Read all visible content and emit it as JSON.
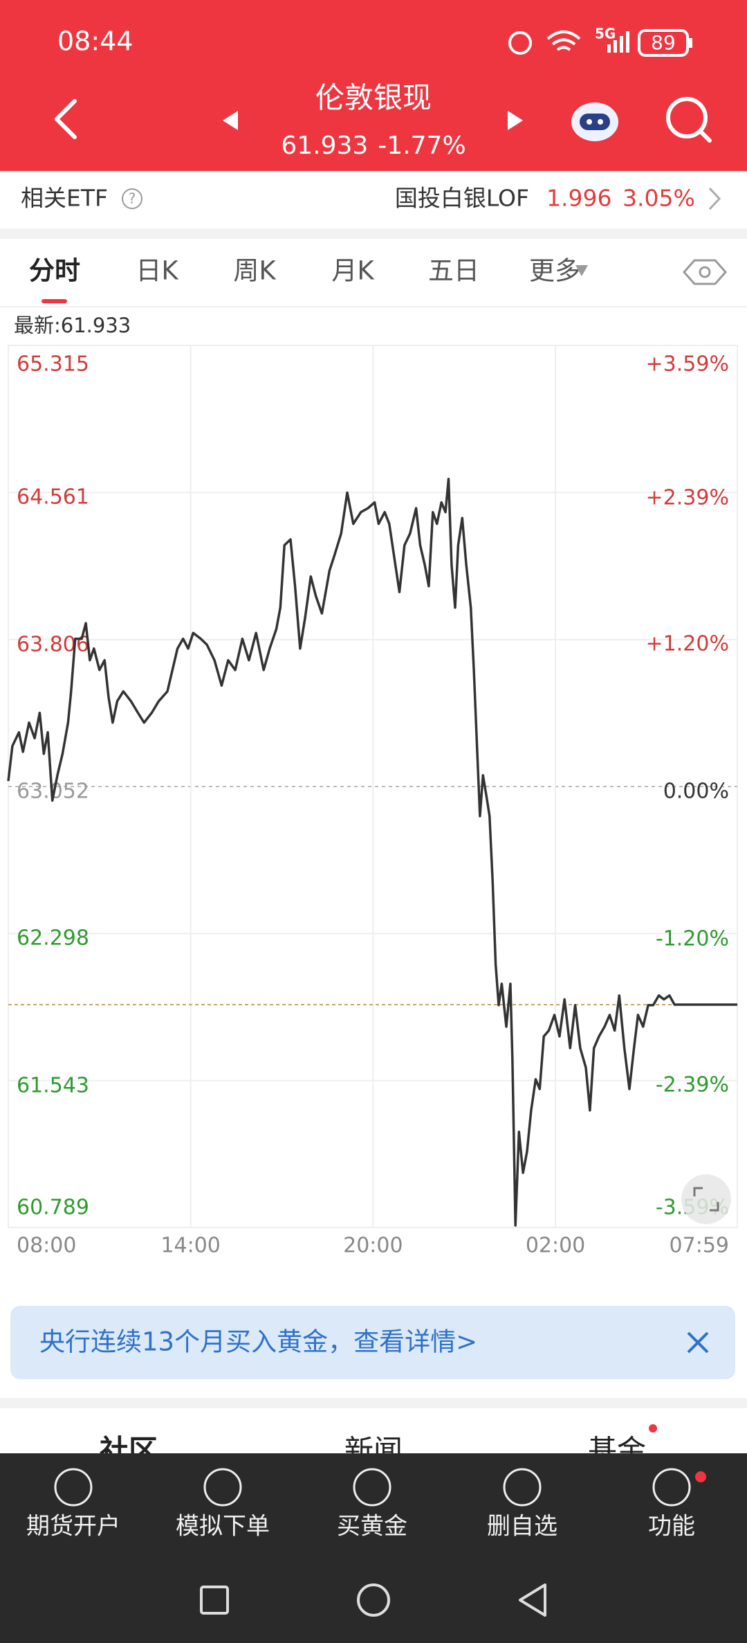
{
  "status_bar": {
    "time": "08:44",
    "network": "5G",
    "battery": "89"
  },
  "header": {
    "title": "伦敦银现",
    "price": "61.933",
    "change": "-1.77%"
  },
  "etf_bar": {
    "label": "相关ETF",
    "fund": "国投白银LOF",
    "price": "1.996",
    "change": "3.05%"
  },
  "tabs": [
    "分时",
    "日K",
    "周K",
    "月K",
    "五日",
    "更多"
  ],
  "chart": {
    "type": "line",
    "latest_prefix": "最新:",
    "latest": 61.933,
    "latest_color": "#c9a46a",
    "color": "#333333",
    "grid": true,
    "x": [
      0,
      8,
      21,
      29,
      41,
      52,
      62,
      70,
      78,
      87,
      97,
      107,
      118,
      124,
      132,
      145,
      153,
      161,
      169,
      180,
      190,
      198,
      206,
      215,
      227,
      242,
      256,
      268,
      283,
      297,
      314,
      324,
      334,
      345,
      355,
      365,
      380,
      392,
      407,
      421,
      434,
      448,
      462,
      475,
      489,
      504,
      516,
      529,
      537,
      545,
      557,
      566,
      576,
      586,
      597,
      607,
      619,
      634,
      644,
      657,
      669,
      681,
      696,
      710,
      723,
      731,
      743,
      752,
      764,
      772,
      782,
      793,
      805,
      813,
      822,
      830,
      838,
      846,
      855,
      863,
      869,
      875,
      882,
      888,
      896,
      904,
      913,
      919,
      925,
      931,
      937,
      944,
      950,
      956,
      962,
      968,
      974,
      983,
      991,
      995,
      1001,
      1008,
      1016,
      1024,
      1032,
      1041,
      1049,
      1057,
      1067,
      1078,
      1088,
      1098,
      1109,
      1119,
      1129,
      1140,
      1148,
      1156,
      1166,
      1177,
      1187,
      1197,
      1206,
      1216,
      1226,
      1235,
      1243,
      1253,
      1263,
      1273,
      1284,
      1294,
      1305,
      1315,
      1439
    ],
    "values": [
      63.08,
      63.26,
      63.33,
      63.23,
      63.38,
      63.3,
      63.43,
      63.22,
      63.33,
      62.98,
      63.11,
      63.22,
      63.38,
      63.54,
      63.81,
      63.81,
      63.89,
      63.7,
      63.76,
      63.65,
      63.7,
      63.51,
      63.38,
      63.49,
      63.54,
      63.49,
      63.43,
      63.38,
      63.43,
      63.49,
      63.54,
      63.65,
      63.76,
      63.81,
      63.76,
      63.84,
      63.81,
      63.78,
      63.7,
      63.57,
      63.7,
      63.65,
      63.81,
      63.7,
      63.84,
      63.65,
      63.76,
      63.86,
      63.97,
      64.29,
      64.32,
      64.08,
      63.76,
      63.92,
      64.13,
      64.03,
      63.94,
      64.16,
      64.24,
      64.35,
      64.56,
      64.4,
      64.46,
      64.48,
      64.51,
      64.4,
      64.46,
      64.4,
      64.19,
      64.05,
      64.29,
      64.35,
      64.48,
      64.29,
      64.19,
      64.08,
      64.46,
      64.4,
      64.51,
      64.46,
      64.63,
      64.19,
      63.97,
      64.29,
      64.43,
      64.19,
      63.97,
      63.65,
      63.27,
      62.9,
      63.11,
      63.0,
      62.9,
      62.57,
      62.14,
      61.93,
      62.04,
      61.82,
      62.04,
      61.66,
      60.8,
      61.28,
      61.07,
      61.18,
      61.39,
      61.55,
      61.5,
      61.77,
      61.8,
      61.88,
      61.77,
      61.96,
      61.71,
      61.93,
      61.71,
      61.61,
      61.39,
      61.71,
      61.77,
      61.82,
      61.88,
      61.8,
      61.98,
      61.71,
      61.5,
      61.71,
      61.88,
      61.82,
      61.93,
      61.93,
      61.98,
      61.96,
      61.98,
      61.933,
      61.933
    ],
    "xlim": [
      0,
      1439
    ],
    "xticks": [
      {
        "value": 0,
        "label": "08:00"
      },
      {
        "value": 360,
        "label": "14:00"
      },
      {
        "value": 720,
        "label": "20:00"
      },
      {
        "value": 1080,
        "label": "02:00"
      },
      {
        "value": 1439,
        "label": "07:59"
      }
    ],
    "ylim": [
      60.789,
      65.315
    ],
    "yticks": [
      65.315,
      64.561,
      63.806,
      63.052,
      62.298,
      61.543,
      60.789
    ],
    "y2lim": [
      -3.59,
      3.59
    ],
    "y2ticks": [
      {
        "value": 3.59,
        "label": "+3.59%"
      },
      {
        "value": 2.39,
        "label": "+2.39%"
      },
      {
        "value": 1.2,
        "label": "+1.20%"
      },
      {
        "value": 0,
        "label": "0.00%"
      },
      {
        "value": -1.2,
        "label": "-1.20%"
      },
      {
        "value": -2.39,
        "label": "-2.39%"
      },
      {
        "value": -3.59,
        "label": "-3.59%"
      }
    ]
  },
  "banner": {
    "text": "央行连续13个月买入黄金，查看详情>"
  },
  "section_tabs": [
    "社区",
    "新闻",
    "基金"
  ],
  "bottom_bar": [
    "期货开户",
    "模拟下单",
    "买黄金",
    "删自选",
    "功能"
  ]
}
